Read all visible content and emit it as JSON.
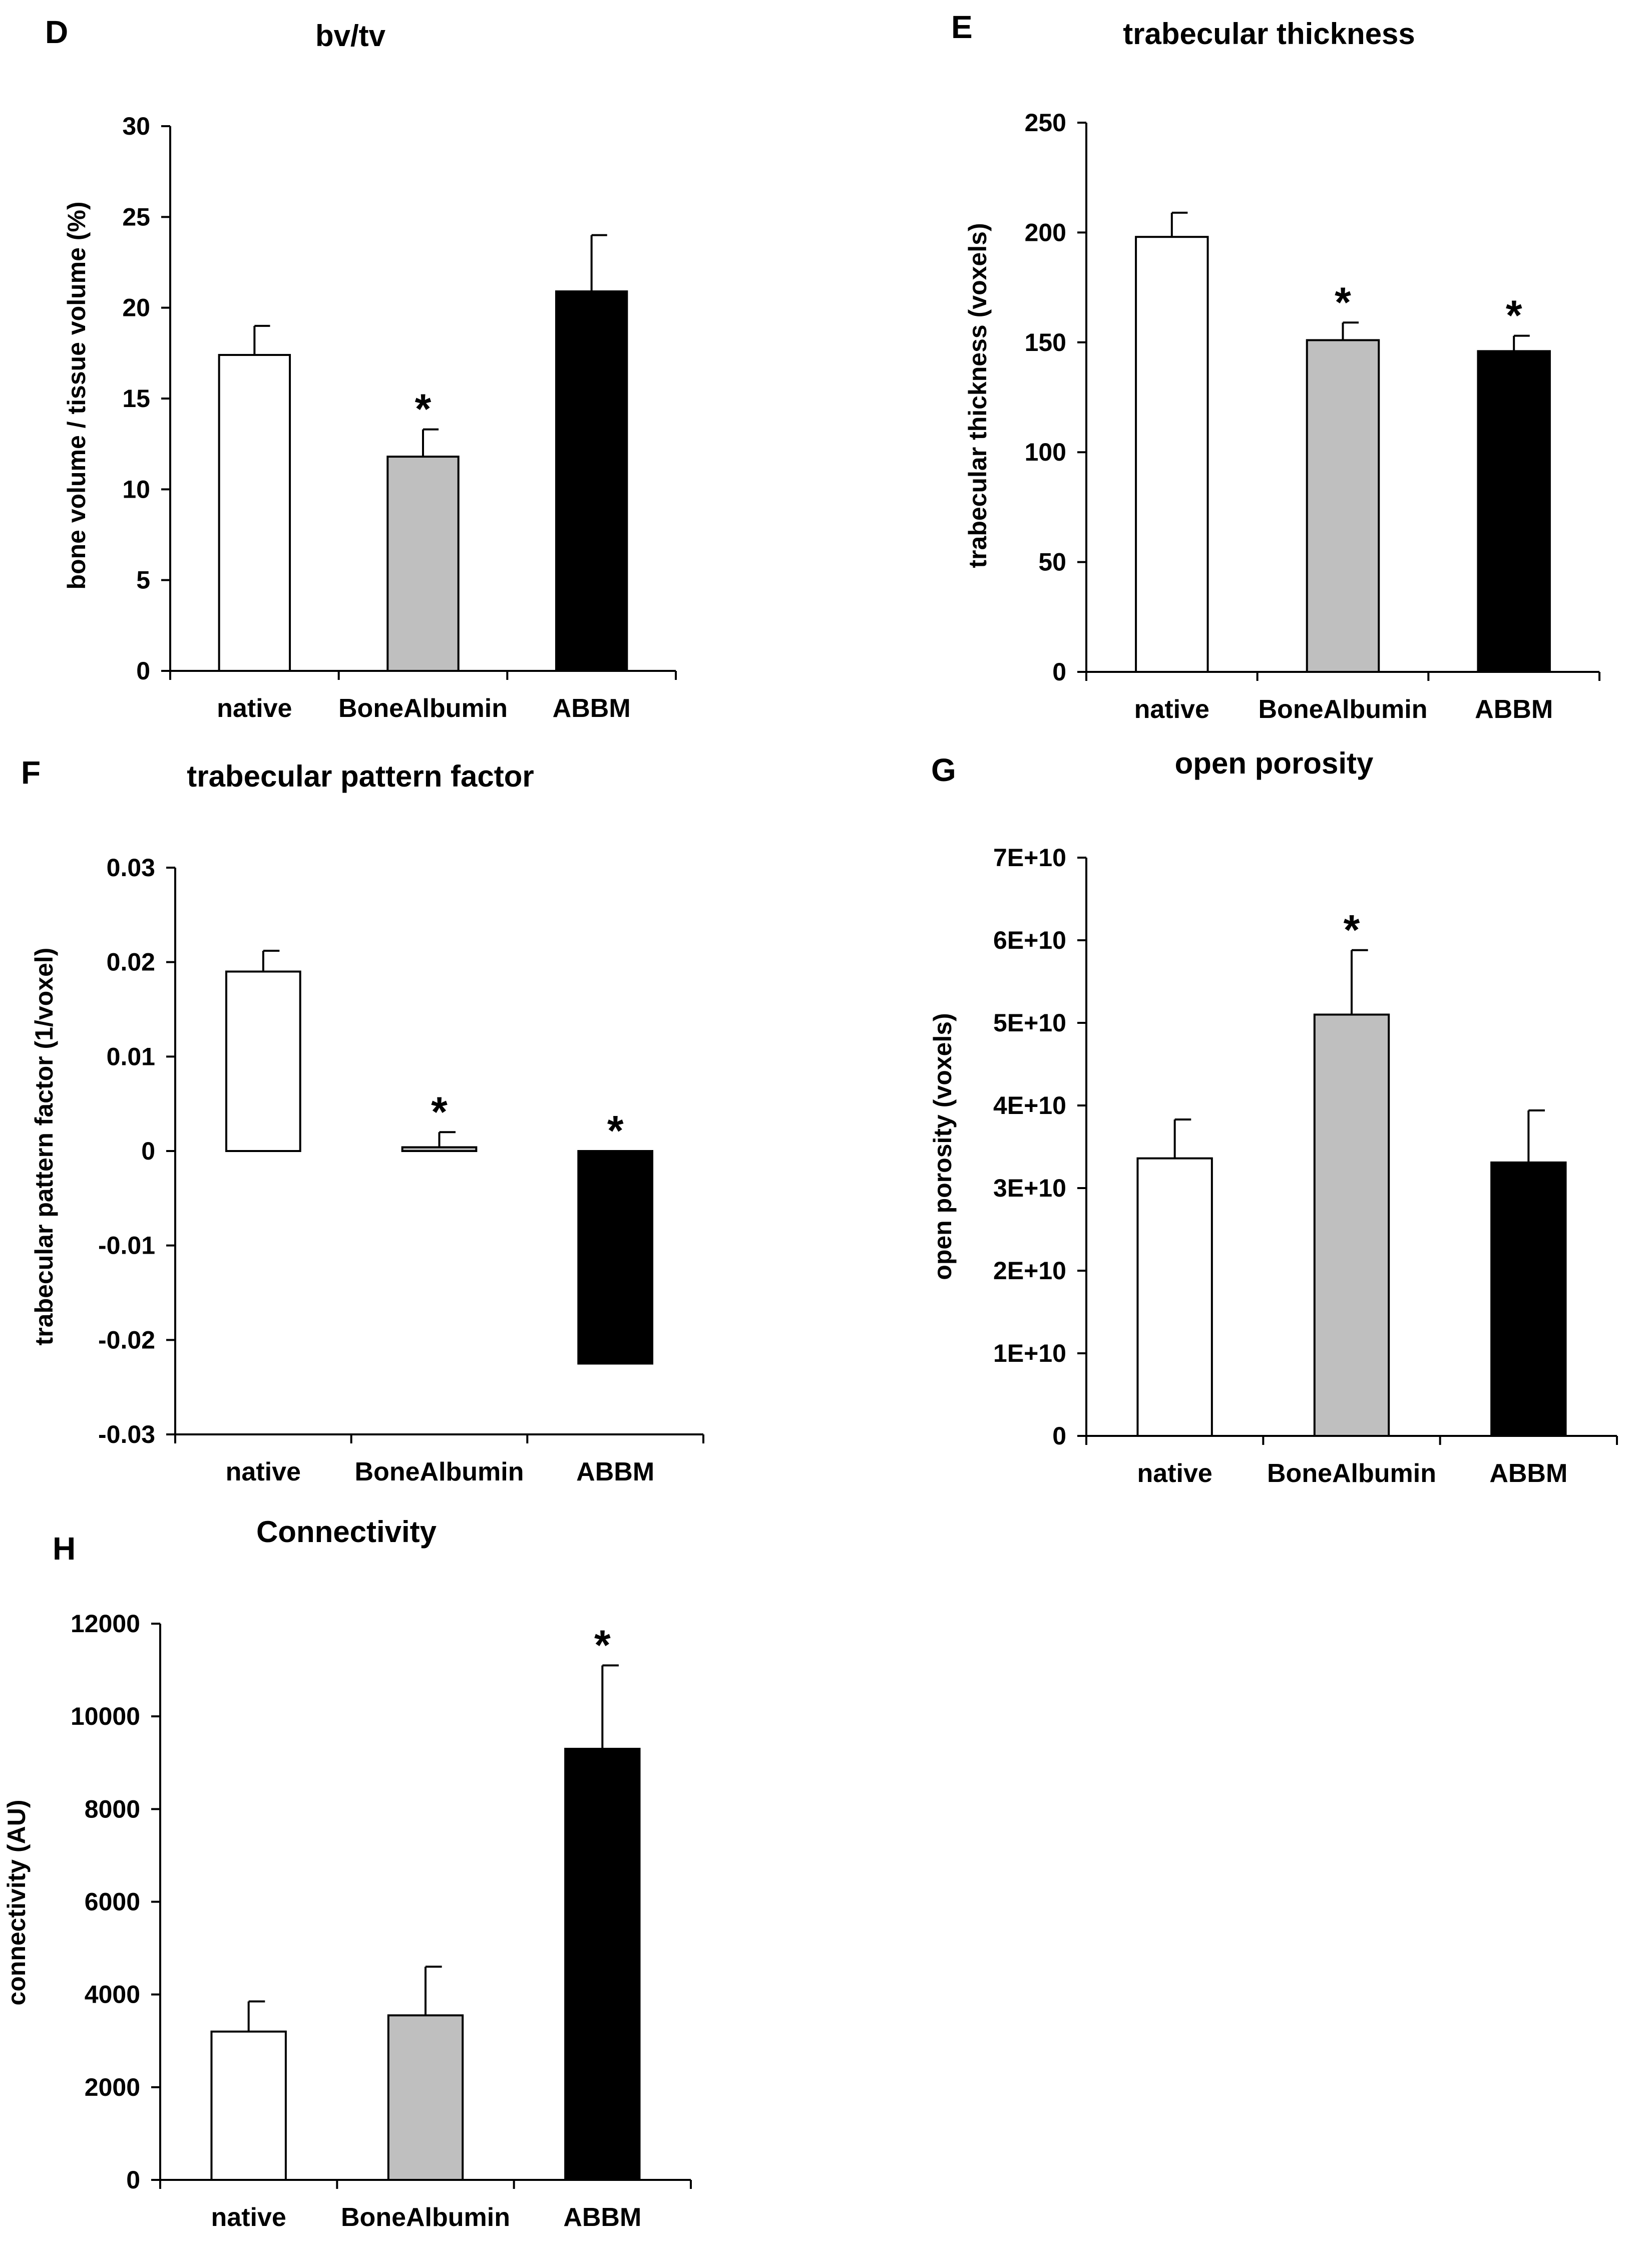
{
  "colors": {
    "native": "#ffffff",
    "BoneAlbumin": "#bfbfbf",
    "ABBM": "#000000",
    "stroke": "#000000"
  },
  "chart_data": [
    {
      "panel": "D",
      "type": "bar",
      "title": "bv/tv",
      "ylabel": "bone volume / tissue volume (%)",
      "xlabel": "",
      "categories": [
        "native",
        "BoneAlbumin",
        "ABBM"
      ],
      "values": [
        17.4,
        11.8,
        20.9
      ],
      "errors": [
        1.6,
        1.5,
        3.1
      ],
      "significant": [
        false,
        true,
        false
      ],
      "ylim": [
        0,
        30
      ],
      "yticks": [
        0,
        5,
        10,
        15,
        20,
        25,
        30
      ],
      "ytick_labels": [
        "0",
        "5",
        "10",
        "15",
        "20",
        "25",
        "30"
      ]
    },
    {
      "panel": "E",
      "type": "bar",
      "title": "trabecular thickness",
      "ylabel": "trabecular thickness (voxels)",
      "xlabel": "",
      "categories": [
        "native",
        "BoneAlbumin",
        "ABBM"
      ],
      "values": [
        198,
        151,
        146
      ],
      "errors": [
        11,
        8,
        7
      ],
      "significant": [
        false,
        true,
        true
      ],
      "ylim": [
        0,
        250
      ],
      "yticks": [
        0,
        50,
        100,
        150,
        200,
        250
      ],
      "ytick_labels": [
        "0",
        "50",
        "100",
        "150",
        "200",
        "250"
      ]
    },
    {
      "panel": "F",
      "type": "bar",
      "title": "trabecular pattern factor",
      "ylabel": "trabecular pattern factor (1/voxel)",
      "xlabel": "",
      "categories": [
        "native",
        "BoneAlbumin",
        "ABBM"
      ],
      "values": [
        0.019,
        0.0004,
        -0.0225
      ],
      "errors": [
        0.0022,
        0.0016,
        0
      ],
      "significant": [
        false,
        true,
        true
      ],
      "ylim": [
        -0.03,
        0.03
      ],
      "yticks": [
        -0.03,
        -0.02,
        -0.01,
        0,
        0.01,
        0.02,
        0.03
      ],
      "ytick_labels": [
        "-0.03",
        "-0.02",
        "-0.01",
        "0",
        "0.01",
        "0.02",
        "0.03"
      ]
    },
    {
      "panel": "G",
      "type": "bar",
      "title": "open porosity",
      "ylabel": "open porosity (voxels)",
      "xlabel": "",
      "categories": [
        "native",
        "BoneAlbumin",
        "ABBM"
      ],
      "values": [
        33600000000,
        51000000000,
        33100000000
      ],
      "errors": [
        4700000000,
        7800000000,
        6300000000
      ],
      "significant": [
        false,
        true,
        false
      ],
      "ylim": [
        0,
        70000000000
      ],
      "yticks": [
        0,
        10000000000,
        20000000000,
        30000000000,
        40000000000,
        50000000000,
        60000000000,
        70000000000
      ],
      "ytick_labels": [
        "0",
        "1E+10",
        "2E+10",
        "3E+10",
        "4E+10",
        "5E+10",
        "6E+10",
        "7E+10"
      ]
    },
    {
      "panel": "H",
      "type": "bar",
      "title": "Connectivity",
      "ylabel": "connectivity (AU)",
      "xlabel": "",
      "categories": [
        "native",
        "BoneAlbumin",
        "ABBM"
      ],
      "values": [
        3200,
        3550,
        9300
      ],
      "errors": [
        650,
        1050,
        1800
      ],
      "significant": [
        false,
        false,
        true
      ],
      "ylim": [
        0,
        12000
      ],
      "yticks": [
        0,
        2000,
        4000,
        6000,
        8000,
        10000,
        12000
      ],
      "ytick_labels": [
        "0",
        "2000",
        "4000",
        "6000",
        "8000",
        "10000",
        "12000"
      ]
    }
  ]
}
